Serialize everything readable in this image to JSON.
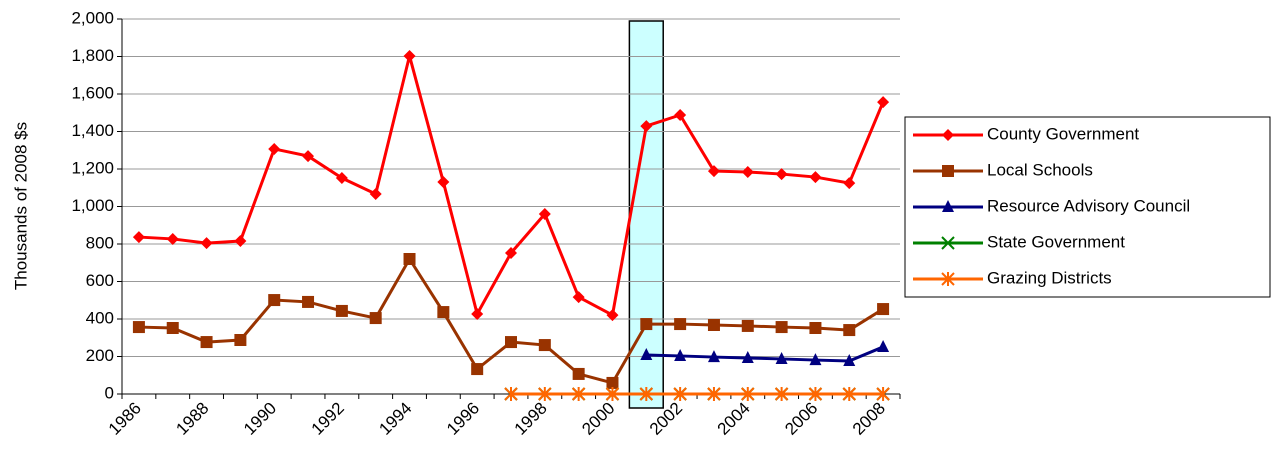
{
  "chart_data": {
    "type": "line",
    "y_axis_label": "Thousands of 2008 $s",
    "categories": [
      "1986",
      null,
      "1988",
      null,
      "1990",
      null,
      "1992",
      null,
      "1994",
      null,
      "1996",
      null,
      "1998",
      null,
      "2000",
      null,
      "2002",
      null,
      "2004",
      null,
      "2006",
      null,
      "2008"
    ],
    "ylim": [
      0,
      2000
    ],
    "yticks": [
      0,
      200,
      400,
      600,
      800,
      {
        "value": 1000,
        "label": "1,000"
      },
      {
        "value": 1200,
        "label": "1,200"
      },
      {
        "value": 1400,
        "label": "1,400"
      },
      {
        "value": 1600,
        "label": "1,600"
      },
      {
        "value": 1800,
        "label": "1,800"
      },
      {
        "value": 2000,
        "label": "2,000"
      }
    ],
    "grid": true,
    "legend": "right",
    "series": [
      {
        "name": "County Government",
        "color": "#ff0000",
        "marker": "diamond",
        "values": [
          837,
          827,
          805,
          816,
          1307,
          1269,
          1152,
          1067,
          1803,
          1131,
          427,
          752,
          960,
          517,
          421,
          1429,
          1488,
          1189,
          1184,
          1173,
          1157,
          1125,
          1557
        ]
      },
      {
        "name": "Local Schools",
        "color": "#993300",
        "marker": "square",
        "values": [
          357,
          352,
          277,
          288,
          501,
          491,
          443,
          405,
          720,
          437,
          133,
          277,
          261,
          107,
          59,
          373,
          373,
          368,
          363,
          357,
          352,
          341,
          453
        ]
      },
      {
        "name": "Resource Advisory Council",
        "color": "#000080",
        "marker": "triangle",
        "values": [
          null,
          null,
          null,
          null,
          null,
          null,
          null,
          null,
          null,
          null,
          null,
          null,
          null,
          null,
          null,
          208,
          203,
          197,
          192,
          187,
          181,
          176,
          251
        ]
      },
      {
        "name": "State Government",
        "color": "#008000",
        "marker": "x",
        "values": [
          null,
          null,
          null,
          null,
          null,
          null,
          null,
          null,
          null,
          null,
          null,
          0,
          0,
          0,
          0,
          0,
          0,
          0,
          0,
          0,
          0,
          0,
          0
        ]
      },
      {
        "name": "Grazing Districts",
        "color": "#ff6600",
        "marker": "star",
        "values": [
          null,
          null,
          null,
          null,
          null,
          null,
          null,
          null,
          null,
          null,
          null,
          0,
          0,
          0,
          0,
          0,
          0,
          0,
          0,
          0,
          0,
          0,
          0
        ]
      }
    ]
  }
}
